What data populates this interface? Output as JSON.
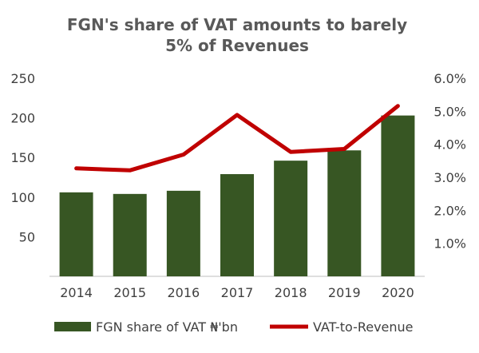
{
  "chart_data": {
    "type": "bar",
    "title_lines": [
      "FGN's share of VAT amounts to barely",
      "5% of Revenues"
    ],
    "categories": [
      "2014",
      "2015",
      "2016",
      "2017",
      "2018",
      "2019",
      "2020"
    ],
    "series": [
      {
        "name": "FGN share of VAT ₦'bn",
        "type": "bar",
        "axis": "left",
        "color": "#375623",
        "values": [
          106,
          104,
          108,
          129,
          146,
          159,
          203
        ]
      },
      {
        "name": "VAT-to-Revenue",
        "type": "line",
        "axis": "right",
        "color": "#C00000",
        "values": [
          3.27,
          3.21,
          3.69,
          4.89,
          3.77,
          3.86,
          5.16
        ]
      }
    ],
    "y_left": {
      "min": 0,
      "max": 250,
      "ticks": [
        "250",
        "200",
        "150",
        "100",
        "50"
      ],
      "tick_values": [
        250,
        200,
        150,
        100,
        50
      ]
    },
    "y_right": {
      "min": 0,
      "max": 6,
      "ticks": [
        "6.0%",
        "5.0%",
        "4.0%",
        "3.0%",
        "2.0%",
        "1.0%"
      ],
      "tick_values": [
        6,
        5,
        4,
        3,
        2,
        1
      ]
    },
    "grid": false,
    "legend_position": "bottom"
  }
}
